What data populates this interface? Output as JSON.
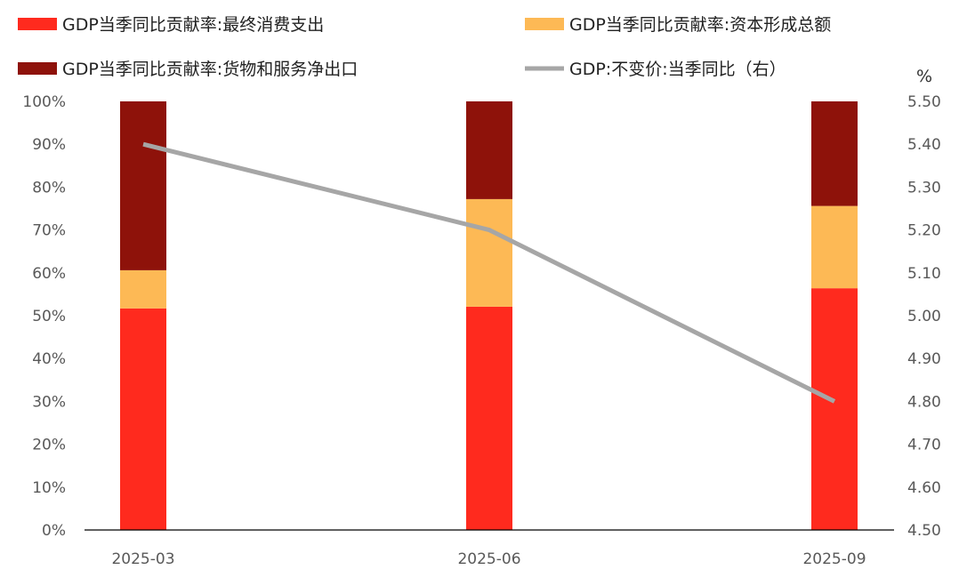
{
  "chart_data": {
    "type": "bar",
    "stacked": true,
    "categories": [
      "2025-03",
      "2025-06",
      "2025-09"
    ],
    "series": [
      {
        "name": "GDP当季同比贡献率:最终消费支出",
        "kind": "bar",
        "color": "#FF2A1E",
        "values": [
          51.7,
          52.1,
          56.4
        ]
      },
      {
        "name": "GDP当季同比贡献率:资本形成总额",
        "kind": "bar",
        "color": "#FDB955",
        "values": [
          8.9,
          25.1,
          19.2
        ]
      },
      {
        "name": "GDP当季同比贡献率:货物和服务净出口",
        "kind": "bar",
        "color": "#8E120A",
        "values": [
          39.4,
          22.8,
          24.4
        ]
      },
      {
        "name": "GDP:不变价:当季同比（右）",
        "kind": "line",
        "axis": "right",
        "color": "#A6A6A6",
        "values": [
          5.4,
          5.2,
          4.8
        ]
      }
    ],
    "left_axis": {
      "ylim": [
        0,
        100
      ],
      "ticks": [
        "0%",
        "10%",
        "20%",
        "30%",
        "40%",
        "50%",
        "60%",
        "70%",
        "80%",
        "90%",
        "100%"
      ]
    },
    "right_axis": {
      "label": "%",
      "ylim": [
        4.5,
        5.5
      ],
      "ticks": [
        "4.50",
        "4.60",
        "4.70",
        "4.80",
        "4.90",
        "5.00",
        "5.10",
        "5.20",
        "5.30",
        "5.40",
        "5.50"
      ]
    },
    "grid": false,
    "legend": "top"
  }
}
